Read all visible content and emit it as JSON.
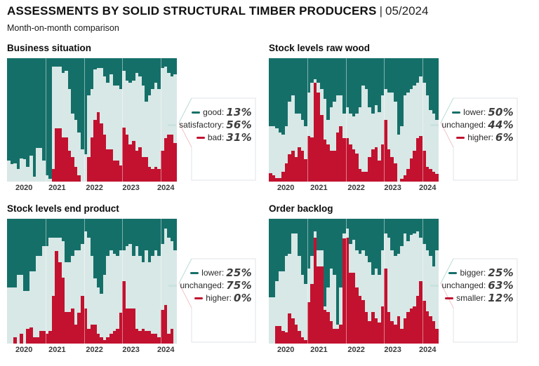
{
  "header": {
    "title": "ASSESSMENTS BY SOLID STRUCTURAL TIMBER PRODUCERS",
    "separator": "|",
    "edition": "05/2024",
    "subtitle": "Month-on-month comparison"
  },
  "colors": {
    "dark": "#156f69",
    "light": "#d8e8e6",
    "red": "#c2122f",
    "light_dash": "#c9e2df",
    "legend_border": "#dfe3e7",
    "notch_top": "#b9dcd8",
    "notch_bottom": "#f1c4c9",
    "axis_text": "#3a3a3a"
  },
  "axis_years": [
    "2020",
    "2021",
    "2022",
    "2023",
    "2024"
  ],
  "chart_data": [
    {
      "type": "stacked-bar-100",
      "title": "Business situation",
      "ylim": [
        0,
        100
      ],
      "grid": "faint-vertical-year-lines",
      "legend_position": "right",
      "x_tick_labels": [
        "2020",
        "2021",
        "2022",
        "2023",
        "2024"
      ],
      "x_range": "2020-01 to 2024-05 (53 monthly bars)",
      "legend": [
        {
          "label": "good:",
          "value": "13%",
          "color_key": "dark"
        },
        {
          "label": "satisfactory:",
          "value": "56%",
          "color_key": "light"
        },
        {
          "label": "bad:",
          "value": "31%",
          "color_key": "red"
        }
      ],
      "series": [
        {
          "name": "good",
          "color_key": "dark",
          "values": [
            83,
            86,
            85,
            90,
            81,
            82,
            88,
            79,
            96,
            73,
            73,
            83,
            95,
            98,
            7,
            7,
            7,
            12,
            10,
            25,
            45,
            50,
            60,
            74,
            78,
            30,
            25,
            9,
            8,
            8,
            15,
            20,
            13,
            22,
            22,
            25,
            10,
            18,
            20,
            18,
            12,
            15,
            22,
            35,
            30,
            25,
            20,
            25,
            8,
            7,
            12,
            15,
            13
          ]
        },
        {
          "name": "satisfactory",
          "color_key": "light",
          "values": [
            17,
            14,
            15,
            10,
            19,
            18,
            12,
            21,
            4,
            27,
            27,
            17,
            5,
            2,
            83,
            50,
            50,
            52,
            54,
            50,
            35,
            38,
            35,
            26,
            22,
            50,
            39,
            41,
            36,
            45,
            47,
            54,
            61,
            61,
            61,
            62,
            46,
            44,
            50,
            49,
            63,
            57,
            58,
            45,
            58,
            65,
            68,
            65,
            67,
            58,
            50,
            47,
            56
          ]
        },
        {
          "name": "bad",
          "color_key": "red",
          "values": [
            0,
            0,
            0,
            0,
            0,
            0,
            0,
            0,
            0,
            0,
            0,
            0,
            0,
            0,
            10,
            43,
            43,
            36,
            36,
            25,
            20,
            12,
            5,
            0,
            0,
            20,
            36,
            50,
            56,
            47,
            38,
            26,
            26,
            17,
            17,
            13,
            44,
            38,
            30,
            33,
            25,
            28,
            20,
            20,
            12,
            10,
            12,
            10,
            25,
            35,
            38,
            38,
            31
          ]
        }
      ]
    },
    {
      "type": "stacked-bar-100",
      "title": "Stock levels raw wood",
      "ylim": [
        0,
        100
      ],
      "grid": "faint-vertical-year-lines",
      "legend_position": "right",
      "x_tick_labels": [
        "2020",
        "2021",
        "2022",
        "2023",
        "2024"
      ],
      "x_range": "2020-01 to 2024-05 (53 monthly bars)",
      "legend": [
        {
          "label": "lower:",
          "value": "50%",
          "color_key": "dark"
        },
        {
          "label": "unchanged:",
          "value": "44%",
          "color_key": "light"
        },
        {
          "label": "higher:",
          "value": "6%",
          "color_key": "red"
        }
      ],
      "series": [
        {
          "name": "lower",
          "color_key": "dark",
          "values": [
            55,
            55,
            57,
            60,
            62,
            55,
            35,
            30,
            45,
            45,
            50,
            55,
            28,
            20,
            17,
            20,
            25,
            33,
            50,
            40,
            35,
            30,
            30,
            45,
            40,
            45,
            47,
            45,
            40,
            22,
            25,
            40,
            45,
            38,
            44,
            30,
            25,
            28,
            28,
            35,
            62,
            55,
            30,
            28,
            25,
            22,
            20,
            15,
            20,
            30,
            42,
            45,
            50
          ]
        },
        {
          "name": "unchanged",
          "color_key": "light",
          "values": [
            38,
            40,
            40,
            37,
            30,
            30,
            43,
            45,
            35,
            27,
            25,
            27,
            35,
            44,
            3,
            8,
            21,
            33,
            20,
            35,
            40,
            30,
            25,
            20,
            25,
            25,
            27,
            32,
            50,
            70,
            67,
            40,
            29,
            34,
            39,
            40,
            25,
            46,
            52,
            50,
            38,
            43,
            65,
            62,
            56,
            53,
            45,
            48,
            55,
            58,
            48,
            47,
            44
          ]
        },
        {
          "name": "higher",
          "color_key": "red",
          "values": [
            7,
            5,
            3,
            3,
            8,
            15,
            22,
            25,
            20,
            28,
            25,
            18,
            37,
            36,
            80,
            72,
            54,
            34,
            30,
            25,
            25,
            40,
            45,
            35,
            35,
            30,
            26,
            23,
            10,
            8,
            8,
            20,
            26,
            28,
            17,
            30,
            50,
            26,
            20,
            15,
            0,
            2,
            5,
            10,
            19,
            25,
            35,
            37,
            25,
            12,
            10,
            8,
            6
          ]
        }
      ]
    },
    {
      "type": "stacked-bar-100",
      "title": "Stock levels end product",
      "ylim": [
        0,
        100
      ],
      "grid": "faint-vertical-year-lines",
      "legend_position": "right",
      "x_tick_labels": [
        "2020",
        "2021",
        "2022",
        "2023",
        "2024"
      ],
      "x_range": "2020-01 to 2024-05 (53 monthly bars)",
      "legend": [
        {
          "label": "lower:",
          "value": "25%",
          "color_key": "dark"
        },
        {
          "label": "unchanged:",
          "value": "75%",
          "color_key": "light"
        },
        {
          "label": "higher:",
          "value": "0%",
          "color_key": "red"
        }
      ],
      "series": [
        {
          "name": "lower",
          "color_key": "dark",
          "values": [
            55,
            55,
            55,
            45,
            45,
            58,
            58,
            42,
            42,
            30,
            30,
            22,
            22,
            15,
            15,
            15,
            15,
            18,
            35,
            35,
            30,
            25,
            25,
            20,
            10,
            15,
            30,
            48,
            55,
            60,
            45,
            30,
            25,
            28,
            30,
            25,
            25,
            22,
            20,
            30,
            22,
            30,
            35,
            25,
            35,
            30,
            25,
            30,
            20,
            8,
            15,
            18,
            25
          ]
        },
        {
          "name": "unchanged",
          "color_key": "light",
          "values": [
            45,
            45,
            40,
            55,
            47,
            42,
            30,
            45,
            53,
            65,
            60,
            68,
            70,
            75,
            47,
            11,
            20,
            29,
            40,
            40,
            42,
            60,
            50,
            42,
            62,
            73,
            55,
            37,
            37,
            35,
            52,
            65,
            67,
            62,
            58,
            50,
            25,
            50,
            52,
            42,
            66,
            60,
            53,
            65,
            55,
            62,
            67,
            65,
            53,
            61,
            77,
            70,
            75
          ]
        },
        {
          "name": "higher",
          "color_key": "red",
          "values": [
            0,
            0,
            5,
            0,
            8,
            0,
            12,
            13,
            5,
            5,
            10,
            10,
            8,
            10,
            38,
            74,
            65,
            53,
            25,
            25,
            28,
            15,
            25,
            38,
            28,
            12,
            15,
            15,
            8,
            5,
            3,
            5,
            8,
            10,
            12,
            25,
            50,
            28,
            28,
            28,
            12,
            10,
            12,
            10,
            10,
            8,
            8,
            5,
            27,
            31,
            8,
            12,
            0
          ]
        }
      ]
    },
    {
      "type": "stacked-bar-100",
      "title": "Order backlog",
      "ylim": [
        0,
        100
      ],
      "grid": "faint-vertical-year-lines",
      "legend_position": "right",
      "x_tick_labels": [
        "2020",
        "2021",
        "2022",
        "2023",
        "2024"
      ],
      "x_range": "2020-01 to 2024-05 (53 monthly bars)",
      "legend": [
        {
          "label": "bigger:",
          "value": "25%",
          "color_key": "dark"
        },
        {
          "label": "unchanged:",
          "value": "63%",
          "color_key": "light"
        },
        {
          "label": "smaller:",
          "value": "12%",
          "color_key": "red"
        }
      ],
      "series": [
        {
          "name": "bigger",
          "color_key": "dark",
          "values": [
            63,
            63,
            50,
            42,
            42,
            30,
            28,
            12,
            12,
            30,
            45,
            52,
            40,
            30,
            10,
            25,
            25,
            70,
            55,
            40,
            45,
            85,
            55,
            12,
            8,
            20,
            17,
            25,
            28,
            25,
            30,
            35,
            45,
            40,
            45,
            25,
            12,
            15,
            25,
            30,
            28,
            22,
            12,
            18,
            13,
            12,
            10,
            15,
            20,
            25,
            30,
            38,
            25
          ]
        },
        {
          "name": "unchanged",
          "color_key": "light",
          "values": [
            37,
            37,
            36,
            44,
            48,
            61,
            48,
            68,
            73,
            60,
            50,
            45,
            27,
            22,
            5,
            13,
            13,
            3,
            20,
            42,
            43,
            3,
            30,
            4,
            7,
            23,
            26,
            30,
            34,
            40,
            45,
            47,
            30,
            40,
            38,
            45,
            28,
            60,
            57,
            55,
            50,
            66,
            68,
            57,
            59,
            58,
            52,
            35,
            46,
            49,
            48,
            44,
            63
          ]
        },
        {
          "name": "smaller",
          "color_key": "red",
          "values": [
            0,
            0,
            14,
            14,
            10,
            9,
            24,
            20,
            15,
            10,
            5,
            3,
            33,
            48,
            85,
            62,
            62,
            27,
            25,
            18,
            12,
            12,
            15,
            84,
            85,
            57,
            57,
            45,
            38,
            35,
            25,
            18,
            25,
            20,
            17,
            30,
            60,
            25,
            18,
            15,
            22,
            12,
            20,
            25,
            28,
            30,
            38,
            50,
            34,
            26,
            22,
            18,
            12
          ]
        }
      ]
    }
  ]
}
